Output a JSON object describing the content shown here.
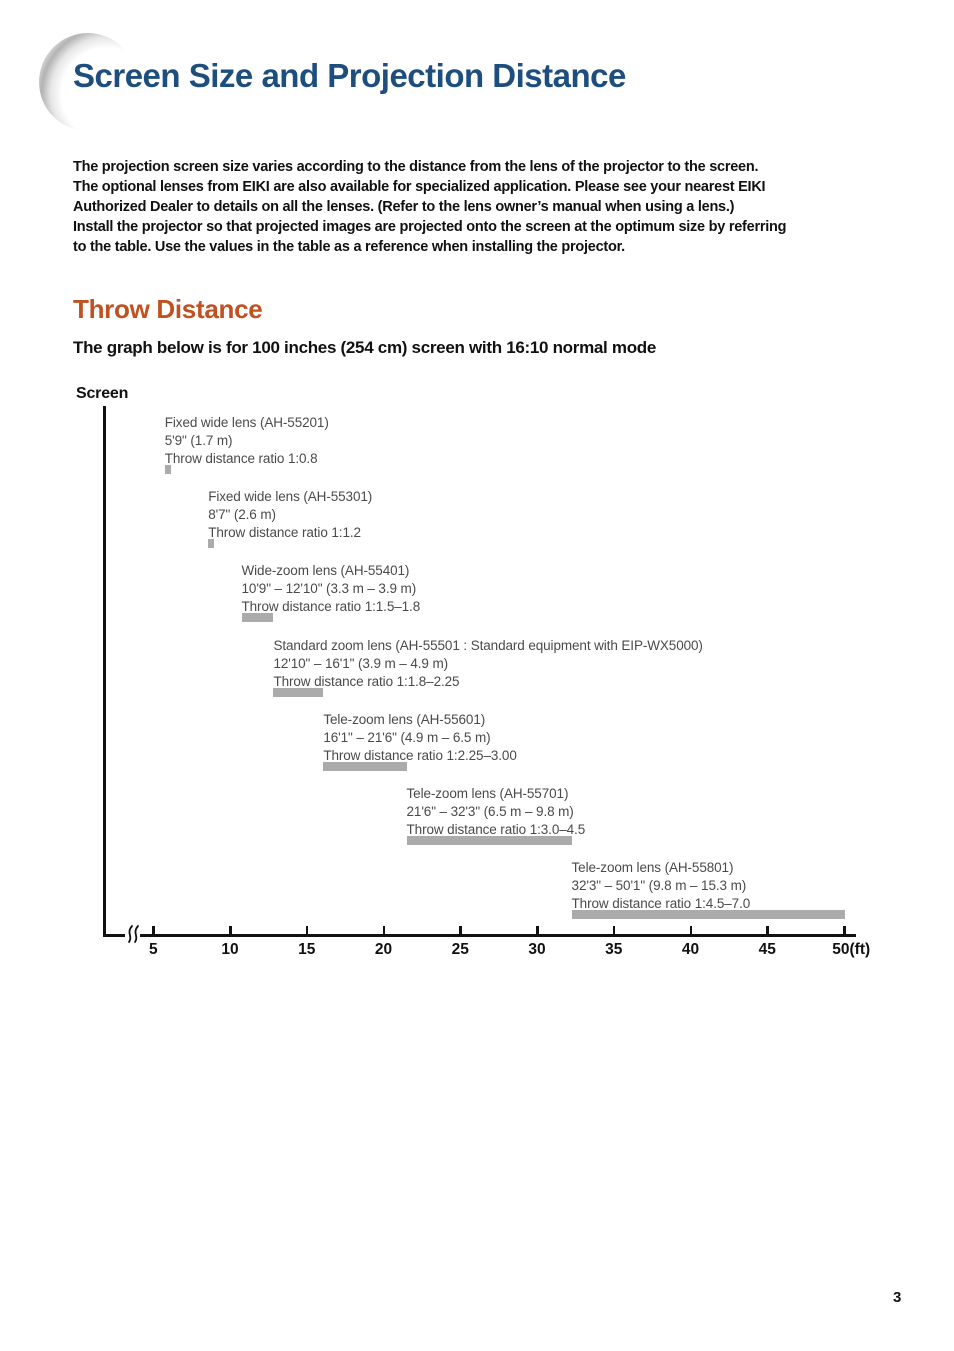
{
  "page": {
    "title": "Screen Size and Projection Distance",
    "number": "3"
  },
  "intro": {
    "lines": [
      "The projection screen size varies according to the distance from the lens of the projector to the screen.",
      "The optional lenses from EIKI are also available for specialized application. Please see your nearest EIKI",
      "Authorized Dealer to details on all the lenses. (Refer to the lens owner’s manual when using a lens.)",
      "Install the projector so that projected images are projected onto the screen at the optimum size by referring",
      "to the table. Use the values in the table as a reference when installing the projector."
    ]
  },
  "throw_section": {
    "heading": "Throw Distance",
    "subtitle": "The graph below is for 100 inches (254 cm) screen with 16:10 normal mode"
  },
  "colors": {
    "title_blue": "#1e4e7e",
    "heading_orange": "#c05120",
    "bar_gray": "#ababab",
    "axis_black": "#111111",
    "lens_text_gray": "#4a4a4a"
  },
  "chart_data": {
    "type": "bar",
    "title": "Throw distance by lens for 100 inches (254 cm) screen with 16:10 normal mode",
    "axis_origin_label": "Screen",
    "xlabel": "",
    "x_unit_suffix": "(ft)",
    "xlim": [
      0,
      50
    ],
    "x_ticks": [
      5,
      10,
      15,
      20,
      25,
      30,
      35,
      40,
      45,
      50
    ],
    "grid": false,
    "lenses": [
      {
        "name": "Fixed wide lens (AH-55201)",
        "distance": "5'9\" (1.7 m)",
        "ratio": "Throw distance ratio 1:0.8",
        "start_ft": 5.75,
        "end_ft": 5.75
      },
      {
        "name": "Fixed wide lens (AH-55301)",
        "distance": "8'7\" (2.6 m)",
        "ratio": "Throw distance ratio 1:1.2",
        "start_ft": 8.58,
        "end_ft": 8.58
      },
      {
        "name": "Wide-zoom lens (AH-55401)",
        "distance": "10'9\" – 12'10\" (3.3 m – 3.9 m)",
        "ratio": "Throw distance ratio 1:1.5–1.8",
        "start_ft": 10.75,
        "end_ft": 12.83
      },
      {
        "name": "Standard zoom lens (AH-55501 : Standard equipment with EIP-WX5000)",
        "distance": "12'10\" – 16'1\" (3.9 m – 4.9 m)",
        "ratio": "Throw distance ratio 1:1.8–2.25",
        "start_ft": 12.83,
        "end_ft": 16.08
      },
      {
        "name": "Tele-zoom lens (AH-55601)",
        "distance": "16'1\" – 21'6\" (4.9 m – 6.5 m)",
        "ratio": "Throw distance ratio 1:2.25–3.00",
        "start_ft": 16.08,
        "end_ft": 21.5
      },
      {
        "name": "Tele-zoom lens (AH-55701)",
        "distance": "21'6\" – 32'3\" (6.5 m – 9.8 m)",
        "ratio": "Throw distance ratio 1:3.0–4.5",
        "start_ft": 21.5,
        "end_ft": 32.25
      },
      {
        "name": "Tele-zoom lens (AH-55801)",
        "distance": "32'3\" – 50'1\" (9.8 m – 15.3 m)",
        "ratio": "Throw distance ratio 1:4.5–7.0",
        "start_ft": 32.25,
        "end_ft": 50.08
      }
    ]
  }
}
